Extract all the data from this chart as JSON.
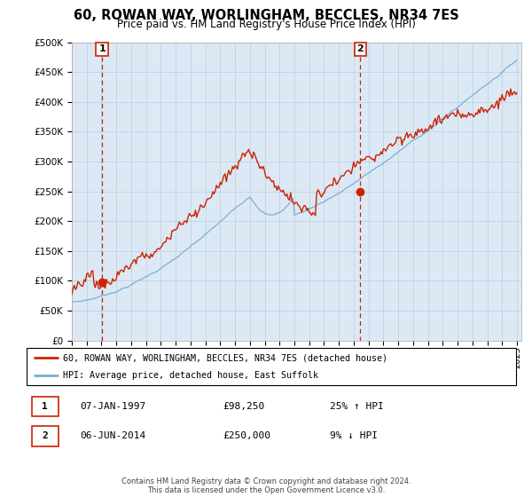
{
  "title": "60, ROWAN WAY, WORLINGHAM, BECCLES, NR34 7ES",
  "subtitle": "Price paid vs. HM Land Registry's House Price Index (HPI)",
  "legend_line1": "60, ROWAN WAY, WORLINGHAM, BECCLES, NR34 7ES (detached house)",
  "legend_line2": "HPI: Average price, detached house, East Suffolk",
  "transaction1_date": "07-JAN-1997",
  "transaction1_price": "£98,250",
  "transaction1_hpi": "25% ↑ HPI",
  "transaction2_date": "06-JUN-2014",
  "transaction2_price": "£250,000",
  "transaction2_hpi": "9% ↓ HPI",
  "footer": "Contains HM Land Registry data © Crown copyright and database right 2024.\nThis data is licensed under the Open Government Licence v3.0.",
  "hpi_color": "#7bafd4",
  "price_color": "#cc2200",
  "bg_color": "#dce9f5",
  "vline_color": "#cc2200",
  "yticks": [
    0,
    50000,
    100000,
    150000,
    200000,
    250000,
    300000,
    350000,
    400000,
    450000,
    500000
  ],
  "transaction1_year": 1997.04,
  "transaction2_year": 2014.44
}
